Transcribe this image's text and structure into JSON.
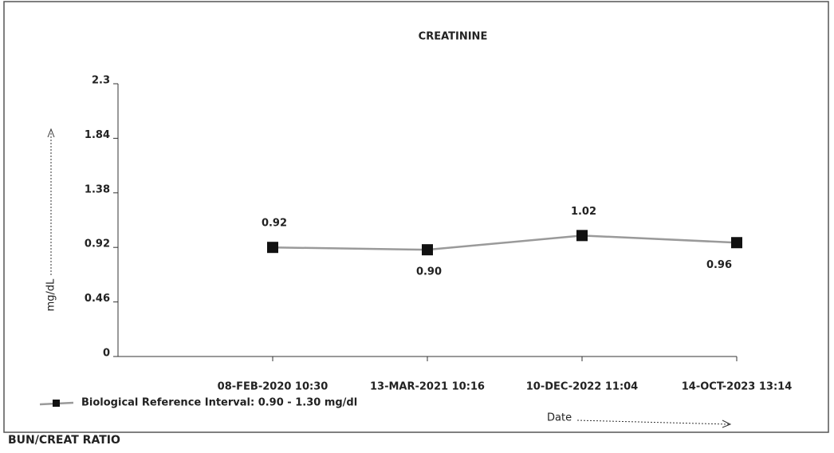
{
  "chart_data": {
    "type": "line",
    "title": "CREATININE",
    "categories": [
      "08-FEB-2020 10:30",
      "13-MAR-2021 10:16",
      "10-DEC-2022 11:04",
      "14-OCT-2023 13:14"
    ],
    "series": [
      {
        "name": "Biological Reference Interval: 0.90 - 1.30 mg/dl",
        "color": "#9a9a9a",
        "values": [
          0.92,
          0.9,
          1.02,
          0.96
        ],
        "value_labels": [
          "0.92",
          "0.90",
          "1.02",
          "0.96"
        ]
      }
    ],
    "ylim": [
      0,
      2.3
    ],
    "yticks": [
      0,
      0.46,
      0.92,
      1.38,
      1.84,
      2.3
    ],
    "y_label": "mg/dL",
    "x_label": "Date",
    "legend": "bottom-left"
  },
  "footer_heading": "BUN/CREAT RATIO"
}
